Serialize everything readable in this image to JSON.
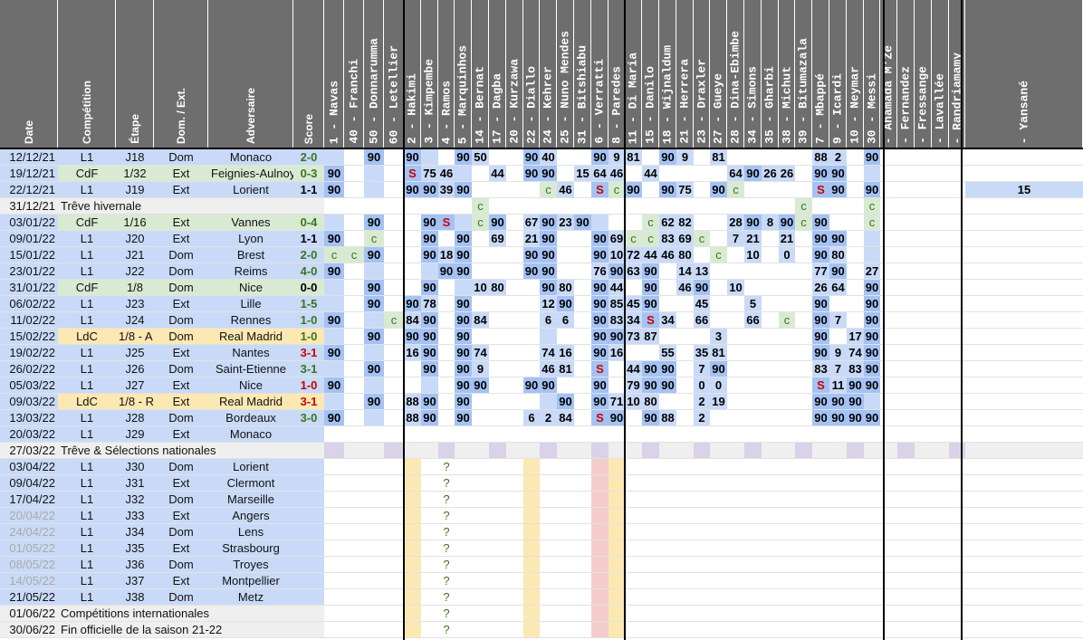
{
  "info_headers": [
    "Date",
    "Compétition",
    "Étape",
    "Dom. / Ext.",
    "Adversaire",
    "Score"
  ],
  "players": [
    {
      "label": "1 - Navas"
    },
    {
      "label": "40 - Franchi"
    },
    {
      "label": "50 - Donnarumma"
    },
    {
      "label": "60 - Letellier"
    },
    {
      "label": "2 - Hakimi"
    },
    {
      "label": "3 - Kimpembe"
    },
    {
      "label": "4 - Ramos"
    },
    {
      "label": "5 - Marquinhos"
    },
    {
      "label": "14 - Bernat"
    },
    {
      "label": "17 - Dagba"
    },
    {
      "label": "20 - Kurzawa"
    },
    {
      "label": "22 - Diallo"
    },
    {
      "label": "24 - Kehrer"
    },
    {
      "label": "25 - Nuno Mendes"
    },
    {
      "label": "31 - Bitshiabu"
    },
    {
      "label": "6 - Verratti"
    },
    {
      "label": "8 - Paredes"
    },
    {
      "label": "11 - Di Maria"
    },
    {
      "label": "15 - Danilo"
    },
    {
      "label": "18 - Wijnaldum"
    },
    {
      "label": "21 - Herrera"
    },
    {
      "label": "23 - Draxler"
    },
    {
      "label": "27 - Gueye"
    },
    {
      "label": "28 - Dina-Ebimbe"
    },
    {
      "label": "34 - Simons"
    },
    {
      "label": "35 - Gharbi"
    },
    {
      "label": "38 - Michut"
    },
    {
      "label": "39 - Bitumazala"
    },
    {
      "label": "7 - Mbappé"
    },
    {
      "label": "9 - Icardi"
    },
    {
      "label": "10 - Neymar"
    },
    {
      "label": "30 - Messi"
    },
    {
      "label": " - Ahamada M'Ze"
    },
    {
      "label": " - Fernandez"
    },
    {
      "label": " - Fressange"
    },
    {
      "label": " - Lavallée"
    },
    {
      "label": " - Randriamamy"
    },
    {
      "label": " - Yansané"
    }
  ],
  "rows": [
    {
      "date": "12/12/21",
      "comp": "L1",
      "etape": "J18",
      "dom": "Dom",
      "adv": "Monaco",
      "score": "2-0",
      "info_bg": "#c9daf8",
      "score_color": "#38761d",
      "cells": {
        "2": "90",
        "4": "90",
        "7": "90",
        "8": "50",
        "11": "90",
        "12": "40",
        "15": "90",
        "16": "9",
        "17": "81",
        "19": "90",
        "20": "9",
        "22": "81",
        "28": "88",
        "29": "2",
        "31": "90"
      }
    },
    {
      "date": "19/12/21",
      "comp": "CdF",
      "etape": "1/32",
      "dom": "Ext",
      "adv": "Feignies-Aulnoye",
      "score": "0-3",
      "info_bg": "#d9ead3",
      "score_color": "#38761d",
      "cells": {
        "0": "90",
        "4": "S",
        "5": "75",
        "6": "46",
        "9": "44",
        "11": "90",
        "12": "90",
        "14": "15",
        "15": "64",
        "16": "46",
        "18": "44",
        "23": "64",
        "24": "90",
        "25": "26",
        "26": "26",
        "28": "90",
        "29": "90"
      }
    },
    {
      "date": "22/12/21",
      "comp": "L1",
      "etape": "J19",
      "dom": "Ext",
      "adv": "Lorient",
      "score": "1-1",
      "info_bg": "#c9daf8",
      "score_color": "#000000",
      "cells": {
        "0": "90",
        "4": "90",
        "5": "90",
        "6": "39",
        "7": "90",
        "12": "c",
        "13": "46",
        "15": "S",
        "16": "c",
        "17": "90",
        "19": "90",
        "20": "75",
        "22": "90",
        "23": "c",
        "28": "S",
        "29": "90",
        "31": "90",
        "37": "15"
      }
    },
    {
      "date": "31/12/21",
      "comp": "Trêve hivernale",
      "etape": "",
      "dom": "",
      "adv": "",
      "score": "",
      "info_bg": "#efefef",
      "score_color": "#000000",
      "cells": {
        "8": "c",
        "27": "c",
        "31": "c"
      }
    },
    {
      "date": "03/01/22",
      "comp": "CdF",
      "etape": "1/16",
      "dom": "Ext",
      "adv": "Vannes",
      "score": "0-4",
      "info_bg": "#d9ead3",
      "score_color": "#38761d",
      "cells": {
        "2": "90",
        "5": "90",
        "6": "S",
        "8": "c",
        "9": "90",
        "11": "67",
        "12": "90",
        "13": "23",
        "14": "90",
        "18": "c",
        "19": "62",
        "20": "82",
        "23": "28",
        "24": "90",
        "25": "8",
        "26": "90",
        "27": "c",
        "28": "90",
        "31": "c"
      }
    },
    {
      "date": "09/01/22",
      "comp": "L1",
      "etape": "J20",
      "dom": "Ext",
      "adv": "Lyon",
      "score": "1-1",
      "info_bg": "#c9daf8",
      "score_color": "#000000",
      "cells": {
        "0": "90",
        "2": "c",
        "5": "90",
        "7": "90",
        "9": "69",
        "11": "21",
        "12": "90",
        "15": "90",
        "16": "69",
        "17": "c",
        "18": "c",
        "19": "83",
        "20": "69",
        "21": "c",
        "23": "7",
        "24": "21",
        "26": "21",
        "28": "90",
        "29": "90"
      }
    },
    {
      "date": "15/01/22",
      "comp": "L1",
      "etape": "J21",
      "dom": "Dom",
      "adv": "Brest",
      "score": "2-0",
      "info_bg": "#c9daf8",
      "score_color": "#38761d",
      "cells": {
        "0": "c",
        "1": "c",
        "2": "90",
        "5": "90",
        "6": "18",
        "7": "90",
        "11": "90",
        "12": "90",
        "15": "90",
        "16": "10",
        "17": "72",
        "18": "44",
        "19": "46",
        "20": "80",
        "22": "c",
        "24": "10",
        "26": "0",
        "28": "90",
        "29": "80"
      }
    },
    {
      "date": "23/01/22",
      "comp": "L1",
      "etape": "J22",
      "dom": "Dom",
      "adv": "Reims",
      "score": "4-0",
      "info_bg": "#c9daf8",
      "score_color": "#38761d",
      "cells": {
        "0": "90",
        "6": "90",
        "7": "90",
        "11": "90",
        "12": "90",
        "15": "76",
        "16": "90",
        "17": "63",
        "18": "90",
        "20": "14",
        "21": "13",
        "28": "77",
        "29": "90",
        "31": "27"
      }
    },
    {
      "date": "31/01/22",
      "comp": "CdF",
      "etape": "1/8",
      "dom": "Dom",
      "adv": "Nice",
      "score": "0-0",
      "info_bg": "#d9ead3",
      "score_color": "#000000",
      "cells": {
        "2": "90",
        "5": "90",
        "8": "10",
        "9": "80",
        "12": "90",
        "13": "80",
        "15": "90",
        "16": "44",
        "18": "90",
        "20": "46",
        "21": "90",
        "23": "10",
        "28": "26",
        "29": "64",
        "31": "90"
      }
    },
    {
      "date": "06/02/22",
      "comp": "L1",
      "etape": "J23",
      "dom": "Ext",
      "adv": "Lille",
      "score": "1-5",
      "info_bg": "#c9daf8",
      "score_color": "#38761d",
      "cells": {
        "2": "90",
        "4": "90",
        "5": "78",
        "7": "90",
        "12": "12",
        "13": "90",
        "15": "90",
        "16": "85",
        "17": "45",
        "18": "90",
        "21": "45",
        "24": "5",
        "28": "90",
        "31": "90"
      }
    },
    {
      "date": "11/02/22",
      "comp": "L1",
      "etape": "J24",
      "dom": "Dom",
      "adv": "Rennes",
      "score": "1-0",
      "info_bg": "#c9daf8",
      "score_color": "#38761d",
      "cells": {
        "0": "90",
        "3": "c",
        "4": "84",
        "5": "90",
        "7": "90",
        "8": "84",
        "12": "6",
        "13": "6",
        "15": "90",
        "16": "83",
        "17": "34",
        "18": "S",
        "19": "34",
        "21": "66",
        "24": "66",
        "26": "c",
        "28": "90",
        "29": "7",
        "31": "90"
      }
    },
    {
      "date": "15/02/22",
      "comp": "LdC",
      "etape": "1/8 - A",
      "dom": "Dom",
      "adv": "Real Madrid",
      "score": "1-0",
      "info_bg": "#fce8b2",
      "score_color": "#38761d",
      "cells": {
        "2": "90",
        "4": "90",
        "5": "90",
        "7": "90",
        "15": "90",
        "16": "90",
        "17": "73",
        "18": "87",
        "22": "3",
        "28": "90",
        "30": "17",
        "31": "90"
      }
    },
    {
      "date": "19/02/22",
      "comp": "L1",
      "etape": "J25",
      "dom": "Ext",
      "adv": "Nantes",
      "score": "3-1",
      "info_bg": "#c9daf8",
      "score_color": "#cc0000",
      "cells": {
        "0": "90",
        "4": "16",
        "5": "90",
        "7": "90",
        "8": "74",
        "12": "74",
        "13": "16",
        "15": "90",
        "16": "16",
        "19": "55",
        "21": "35",
        "22": "81",
        "28": "90",
        "29": "9",
        "30": "74",
        "31": "90"
      }
    },
    {
      "date": "26/02/22",
      "comp": "L1",
      "etape": "J26",
      "dom": "Dom",
      "adv": "Saint-Etienne",
      "score": "3-1",
      "info_bg": "#c9daf8",
      "score_color": "#38761d",
      "cells": {
        "2": "90",
        "5": "90",
        "7": "90",
        "8": "9",
        "12": "46",
        "13": "81",
        "15": "S",
        "17": "44",
        "18": "90",
        "19": "90",
        "21": "7",
        "22": "90",
        "28": "83",
        "29": "7",
        "30": "83",
        "31": "90"
      }
    },
    {
      "date": "05/03/22",
      "comp": "L1",
      "etape": "J27",
      "dom": "Ext",
      "adv": "Nice",
      "score": "1-0",
      "info_bg": "#c9daf8",
      "score_color": "#cc0000",
      "cells": {
        "0": "90",
        "7": "90",
        "8": "90",
        "11": "90",
        "12": "90",
        "15": "90",
        "17": "79",
        "18": "90",
        "19": "90",
        "21": "0",
        "22": "0",
        "28": "S",
        "29": "11",
        "30": "90",
        "31": "90"
      }
    },
    {
      "date": "09/03/22",
      "comp": "LdC",
      "etape": "1/8 - R",
      "dom": "Ext",
      "adv": "Real Madrid",
      "score": "3-1",
      "info_bg": "#fce8b2",
      "score_color": "#cc0000",
      "cells": {
        "2": "90",
        "4": "88",
        "5": "90",
        "7": "90",
        "13": "90",
        "15": "90",
        "16": "71",
        "17": "10",
        "18": "80",
        "21": "2",
        "22": "19",
        "28": "90",
        "29": "90",
        "30": "90"
      }
    },
    {
      "date": "13/03/22",
      "comp": "L1",
      "etape": "J28",
      "dom": "Dom",
      "adv": "Bordeaux",
      "score": "3-0",
      "info_bg": "#c9daf8",
      "score_color": "#38761d",
      "cells": {
        "0": "90",
        "4": "88",
        "5": "90",
        "7": "90",
        "11": "6",
        "12": "2",
        "13": "84",
        "15": "S",
        "16": "90",
        "18": "90",
        "19": "88",
        "21": "2",
        "28": "90",
        "29": "90",
        "30": "90",
        "31": "90"
      }
    },
    {
      "date": "20/03/22",
      "comp": "L1",
      "etape": "J29",
      "dom": "Ext",
      "adv": "Monaco",
      "score": "",
      "info_bg": "#c9daf8",
      "score_color": "#000000",
      "cells": {}
    },
    {
      "date": "27/03/22",
      "comp": "Trêve & Sélections nationales",
      "etape": "",
      "dom": "",
      "adv": "",
      "score": "",
      "info_bg": "#efefef",
      "score_color": "#000000",
      "cells": {}
    },
    {
      "date": "03/04/22",
      "comp": "L1",
      "etape": "J30",
      "dom": "Dom",
      "adv": "Lorient",
      "score": "",
      "info_bg": "#c9daf8",
      "score_color": "#000000",
      "cells": {
        "6": "?"
      }
    },
    {
      "date": "09/04/22",
      "comp": "L1",
      "etape": "J31",
      "dom": "Ext",
      "adv": "Clermont",
      "score": "",
      "info_bg": "#c9daf8",
      "score_color": "#000000",
      "cells": {
        "6": "?"
      }
    },
    {
      "date": "17/04/22",
      "comp": "L1",
      "etape": "J32",
      "dom": "Dom",
      "adv": "Marseille",
      "score": "",
      "info_bg": "#c9daf8",
      "score_color": "#000000",
      "cells": {
        "6": "?"
      }
    },
    {
      "date": "20/04/22",
      "comp": "L1",
      "etape": "J33",
      "dom": "Ext",
      "adv": "Angers",
      "score": "",
      "info_bg": "#c9daf8",
      "score_color": "#000000",
      "grey": true,
      "cells": {
        "6": "?"
      }
    },
    {
      "date": "24/04/22",
      "comp": "L1",
      "etape": "J34",
      "dom": "Dom",
      "adv": "Lens",
      "score": "",
      "info_bg": "#c9daf8",
      "score_color": "#000000",
      "grey": true,
      "cells": {
        "6": "?"
      }
    },
    {
      "date": "01/05/22",
      "comp": "L1",
      "etape": "J35",
      "dom": "Ext",
      "adv": "Strasbourg",
      "score": "",
      "info_bg": "#c9daf8",
      "score_color": "#000000",
      "grey": true,
      "cells": {
        "6": "?"
      }
    },
    {
      "date": "08/05/22",
      "comp": "L1",
      "etape": "J36",
      "dom": "Dom",
      "adv": "Troyes",
      "score": "",
      "info_bg": "#c9daf8",
      "score_color": "#000000",
      "grey": true,
      "cells": {
        "6": "?"
      }
    },
    {
      "date": "14/05/22",
      "comp": "L1",
      "etape": "J37",
      "dom": "Ext",
      "adv": "Montpellier",
      "score": "",
      "info_bg": "#c9daf8",
      "score_color": "#000000",
      "grey": true,
      "cells": {
        "6": "?"
      }
    },
    {
      "date": "21/05/22",
      "comp": "L1",
      "etape": "J38",
      "dom": "Dom",
      "adv": "Metz",
      "score": "",
      "info_bg": "#c9daf8",
      "score_color": "#000000",
      "cells": {
        "6": "?"
      }
    },
    {
      "date": "01/06/22",
      "comp": "Compétitions internationales",
      "etape": "",
      "dom": "",
      "adv": "",
      "score": "",
      "info_bg": "#efefef",
      "score_color": "#000000",
      "cells": {
        "6": "?"
      }
    },
    {
      "date": "30/06/22",
      "comp": "Fin officielle de la saison 21-22",
      "etape": "",
      "dom": "",
      "adv": "",
      "score": "",
      "info_bg": "#efefef",
      "score_color": "#000000",
      "cells": {
        "6": "?"
      }
    }
  ],
  "colors": {
    "header_bg": "#6e6e6e",
    "played": "#a4c2f4",
    "played_light": "#c9daf8",
    "played_dark": "#8eaef0",
    "bench": "#d9ead3",
    "highlight": "#ffff00",
    "red": "#cc0000",
    "win": "#38761d",
    "pending": "#fce8b2",
    "pending_pink": "#f4cccc",
    "break": "#d9d2e9"
  }
}
